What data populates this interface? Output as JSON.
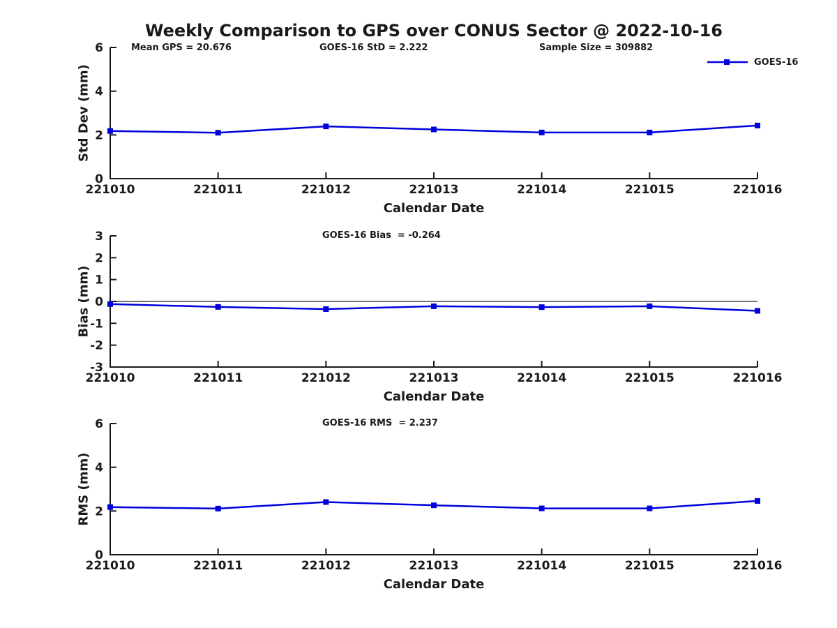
{
  "title": "Weekly Comparison to GPS over CONUS Sector @ 2022-10-16",
  "legend": {
    "label": "GOES-16",
    "color": "#0000dd"
  },
  "chart_data": [
    {
      "type": "line",
      "panel": "std-dev",
      "annotations": [
        {
          "text": "Mean GPS = 20.676"
        },
        {
          "text": "GOES-16 StD = 2.222"
        },
        {
          "text": "Sample Size = 309882"
        }
      ],
      "categories": [
        "221010",
        "221011",
        "221012",
        "221013",
        "221014",
        "221015",
        "221016"
      ],
      "series": [
        {
          "name": "GOES-16",
          "color": "#0000dd",
          "values": [
            2.18,
            2.1,
            2.39,
            2.25,
            2.11,
            2.11,
            2.43
          ]
        }
      ],
      "xlabel": "Calendar Date",
      "ylabel": "Std Dev (mm)",
      "ylim": [
        0,
        6
      ],
      "yticks": [
        0,
        2,
        4,
        6
      ],
      "zero_line": false,
      "legend_position": "upper-right",
      "grid": false
    },
    {
      "type": "line",
      "panel": "bias",
      "annotations": [
        {
          "text": "GOES-16 Bias  = -0.264"
        }
      ],
      "categories": [
        "221010",
        "221011",
        "221012",
        "221013",
        "221014",
        "221015",
        "221016"
      ],
      "series": [
        {
          "name": "GOES-16",
          "color": "#0000dd",
          "values": [
            -0.12,
            -0.25,
            -0.35,
            -0.22,
            -0.26,
            -0.22,
            -0.43
          ]
        }
      ],
      "xlabel": "Calendar Date",
      "ylabel": "Bias (mm)",
      "ylim": [
        -3,
        3
      ],
      "yticks": [
        -3,
        -2,
        -1,
        0,
        1,
        2,
        3
      ],
      "zero_line": true,
      "legend_position": "none",
      "grid": false
    },
    {
      "type": "line",
      "panel": "rms",
      "annotations": [
        {
          "text": "GOES-16 RMS  = 2.237"
        }
      ],
      "categories": [
        "221010",
        "221011",
        "221012",
        "221013",
        "221014",
        "221015",
        "221016"
      ],
      "series": [
        {
          "name": "GOES-16",
          "color": "#0000dd",
          "values": [
            2.18,
            2.11,
            2.41,
            2.26,
            2.12,
            2.12,
            2.46
          ]
        }
      ],
      "xlabel": "Calendar Date",
      "ylabel": "RMS (mm)",
      "ylim": [
        0,
        6
      ],
      "yticks": [
        0,
        2,
        4,
        6
      ],
      "zero_line": false,
      "legend_position": "none",
      "grid": false
    }
  ]
}
